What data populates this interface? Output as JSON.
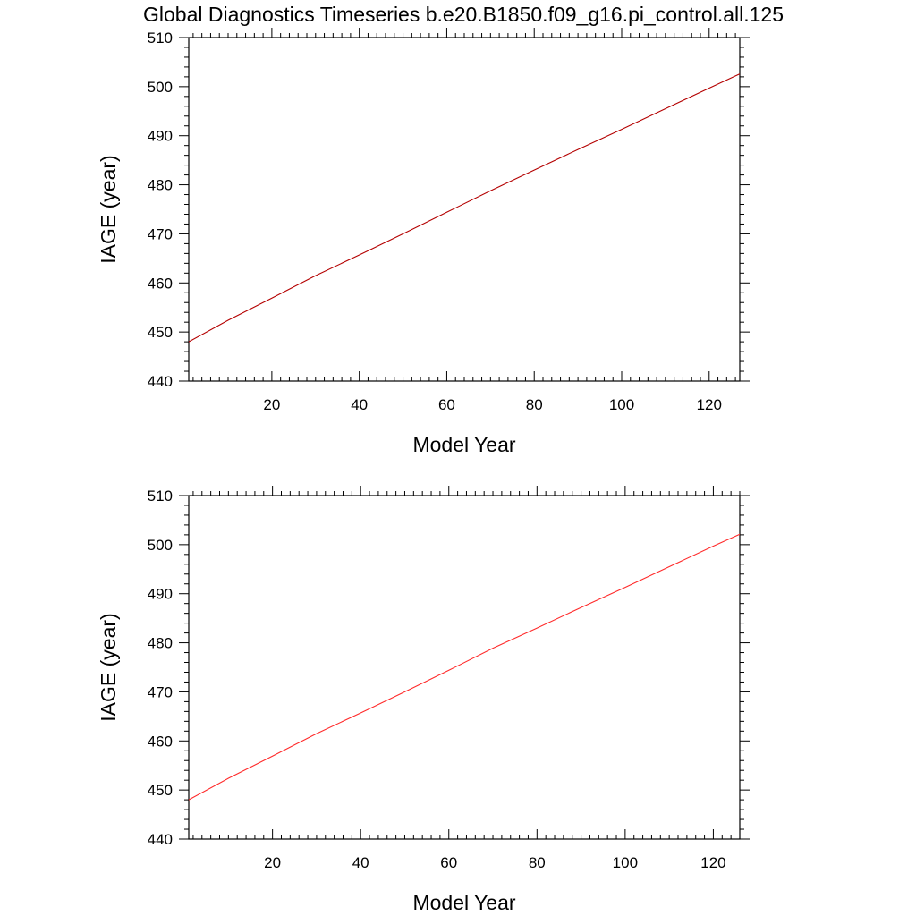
{
  "figure": {
    "title": "Global Diagnostics Timeseries b.e20.B1850.f09_g16.pi_control.all.125"
  },
  "chart_data": [
    {
      "type": "line",
      "title": "",
      "xlabel": "Model Year",
      "ylabel": "IAGE (year)",
      "xlim": [
        1,
        127
      ],
      "ylim": [
        440,
        510
      ],
      "xticks": [
        20,
        40,
        60,
        80,
        100,
        120
      ],
      "yticks": [
        440,
        450,
        460,
        470,
        480,
        490,
        500,
        510
      ],
      "grid": false,
      "legend": "none",
      "series": [
        {
          "color": "#b40000",
          "x": [
            1,
            10,
            20,
            30,
            40,
            50,
            60,
            70,
            80,
            90,
            100,
            110,
            120,
            127
          ],
          "y": [
            448.0,
            452.4,
            456.9,
            461.5,
            465.7,
            470.0,
            474.4,
            478.8,
            483.0,
            487.2,
            491.3,
            495.5,
            499.7,
            502.6
          ]
        }
      ]
    },
    {
      "type": "line",
      "title": "",
      "xlabel": "Model Year",
      "ylabel": "IAGE (year)",
      "xlim": [
        1,
        126
      ],
      "ylim": [
        440,
        510
      ],
      "xticks": [
        20,
        40,
        60,
        80,
        100,
        120
      ],
      "yticks": [
        440,
        450,
        460,
        470,
        480,
        490,
        500,
        510
      ],
      "grid": false,
      "legend": "none",
      "series": [
        {
          "color": "#ff2a2a",
          "x": [
            1,
            10,
            20,
            30,
            40,
            50,
            60,
            70,
            80,
            90,
            100,
            110,
            120,
            126
          ],
          "y": [
            448.0,
            452.4,
            456.9,
            461.5,
            465.7,
            470.0,
            474.4,
            478.9,
            483.0,
            487.2,
            491.3,
            495.5,
            499.7,
            502.1
          ]
        }
      ]
    }
  ]
}
